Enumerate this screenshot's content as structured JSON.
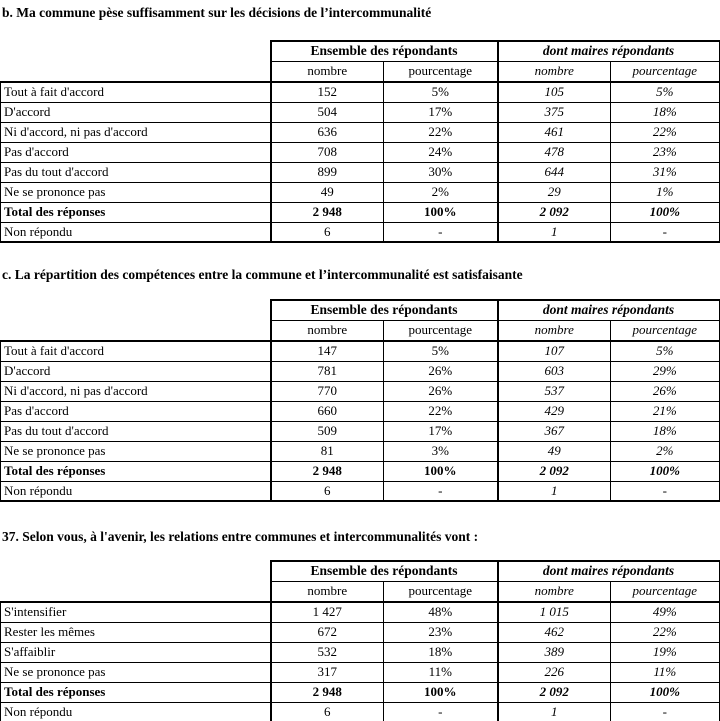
{
  "colors": {
    "background": "#ffffff",
    "text": "#000000",
    "table_border": "#000000"
  },
  "tables": [
    {
      "title": "b. Ma commune pèse suffisamment sur les décisions de l’intercommunalité",
      "col_groups": [
        "Ensemble des répondants",
        "dont maires répondants"
      ],
      "sub_headers": [
        "nombre",
        "pourcentage",
        "nombre",
        "pourcentage"
      ],
      "rows": [
        {
          "label": "Tout à fait d'accord",
          "values": [
            "152",
            "5%",
            "105",
            "5%"
          ],
          "bold": false
        },
        {
          "label": "D'accord",
          "values": [
            "504",
            "17%",
            "375",
            "18%"
          ],
          "bold": false
        },
        {
          "label": "Ni d'accord, ni pas d'accord",
          "values": [
            "636",
            "22%",
            "461",
            "22%"
          ],
          "bold": false
        },
        {
          "label": "Pas d'accord",
          "values": [
            "708",
            "24%",
            "478",
            "23%"
          ],
          "bold": false
        },
        {
          "label": "Pas du tout d'accord",
          "values": [
            "899",
            "30%",
            "644",
            "31%"
          ],
          "bold": false
        },
        {
          "label": "Ne se prononce pas",
          "values": [
            "49",
            "2%",
            "29",
            "1%"
          ],
          "bold": false
        },
        {
          "label": "Total des réponses",
          "values": [
            "2 948",
            "100%",
            "2 092",
            "100%"
          ],
          "bold": true
        },
        {
          "label": "Non répondu",
          "values": [
            "6",
            "-",
            "1",
            "-"
          ],
          "bold": false
        }
      ]
    },
    {
      "title": "c. La répartition des compétences entre la commune et l’intercommunalité est satisfaisante",
      "col_groups": [
        "Ensemble des répondants",
        "dont maires répondants"
      ],
      "sub_headers": [
        "nombre",
        "pourcentage",
        "nombre",
        "pourcentage"
      ],
      "rows": [
        {
          "label": "Tout à fait d'accord",
          "values": [
            "147",
            "5%",
            "107",
            "5%"
          ],
          "bold": false
        },
        {
          "label": "D'accord",
          "values": [
            "781",
            "26%",
            "603",
            "29%"
          ],
          "bold": false
        },
        {
          "label": "Ni d'accord, ni pas d'accord",
          "values": [
            "770",
            "26%",
            "537",
            "26%"
          ],
          "bold": false
        },
        {
          "label": "Pas d'accord",
          "values": [
            "660",
            "22%",
            "429",
            "21%"
          ],
          "bold": false
        },
        {
          "label": "Pas du tout d'accord",
          "values": [
            "509",
            "17%",
            "367",
            "18%"
          ],
          "bold": false
        },
        {
          "label": "Ne se prononce pas",
          "values": [
            "81",
            "3%",
            "49",
            "2%"
          ],
          "bold": false
        },
        {
          "label": "Total des réponses",
          "values": [
            "2 948",
            "100%",
            "2 092",
            "100%"
          ],
          "bold": true
        },
        {
          "label": "Non répondu",
          "values": [
            "6",
            "-",
            "1",
            "-"
          ],
          "bold": false
        }
      ]
    },
    {
      "title": "37. Selon vous, à l'avenir, les relations entre communes et intercommunalités vont :",
      "col_groups": [
        "Ensemble des répondants",
        "dont maires répondants"
      ],
      "sub_headers": [
        "nombre",
        "pourcentage",
        "nombre",
        "pourcentage"
      ],
      "rows": [
        {
          "label": "S'intensifier",
          "values": [
            "1 427",
            "48%",
            "1 015",
            "49%"
          ],
          "bold": false
        },
        {
          "label": "Rester les mêmes",
          "values": [
            "672",
            "23%",
            "462",
            "22%"
          ],
          "bold": false
        },
        {
          "label": "S'affaiblir",
          "values": [
            "532",
            "18%",
            "389",
            "19%"
          ],
          "bold": false
        },
        {
          "label": "Ne se prononce pas",
          "values": [
            "317",
            "11%",
            "226",
            "11%"
          ],
          "bold": false
        },
        {
          "label": "Total des réponses",
          "values": [
            "2 948",
            "100%",
            "2 092",
            "100%"
          ],
          "bold": true
        },
        {
          "label": "Non répondu",
          "values": [
            "6",
            "-",
            "1",
            "-"
          ],
          "bold": false
        }
      ]
    }
  ]
}
